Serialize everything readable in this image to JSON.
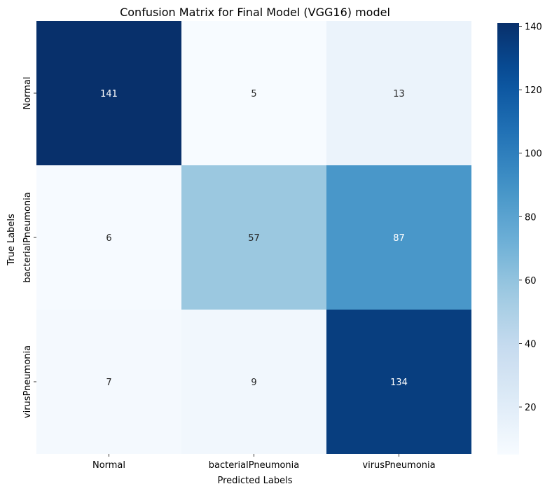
{
  "chart_data": {
    "type": "heatmap",
    "title": "Confusion Matrix for Final Model (VGG16) model",
    "xlabel": "Predicted Labels",
    "ylabel": "True Labels",
    "x_categories": [
      "Normal",
      "bacterialPneumonia",
      "virusPneumonia"
    ],
    "y_categories": [
      "Normal",
      "bacterialPneumonia",
      "virusPneumonia"
    ],
    "values": [
      [
        141,
        5,
        13
      ],
      [
        6,
        57,
        87
      ],
      [
        7,
        9,
        134
      ]
    ],
    "colormap": "Blues",
    "colorbar": {
      "range": [
        5,
        141
      ],
      "ticks": [
        20,
        40,
        60,
        80,
        100,
        120,
        140
      ]
    }
  }
}
